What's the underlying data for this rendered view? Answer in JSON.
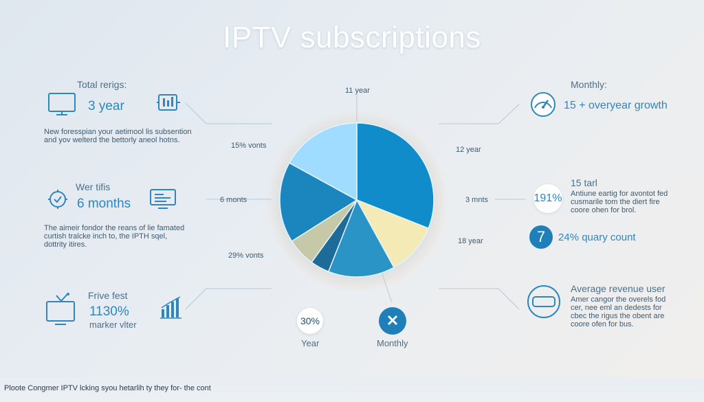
{
  "title": "IPTV subscriptions",
  "colors": {
    "primary": "#0f8cc9",
    "light": "#9fdcff",
    "mid": "#2a94c7",
    "pale_yellow": "#f3eab5",
    "olive": "#c5c9a8",
    "navy": "#1d6b99",
    "glow": "#f6b983"
  },
  "left": {
    "block1": {
      "label": "Total rerigs:",
      "value": "3 year",
      "desc1": "New foresspian your aetimool lis subsention",
      "desc2": "and yov welterd the bettorly aneol hotns.",
      "icon": "monitor-icon",
      "icon2": "chart-screen-icon"
    },
    "block2": {
      "label": "Wer tifis",
      "value": "6 months",
      "desc1": "The aimeir fondor the reans of lie famated",
      "desc2": "curtish tralcke inch to, the IPTH sqel,",
      "desc3": "dottrity itires.",
      "icon": "clock-icon",
      "icon2": "dashboard-screen-icon"
    },
    "block3": {
      "label": "Frive fest",
      "value": "1130%",
      "sub": "marker vlter",
      "icon": "tv-icon",
      "icon2": "bar-chart-icon"
    }
  },
  "right": {
    "block1": {
      "label": "Monthly:",
      "value": "15 + overyear growth",
      "icon": "gauge-icon"
    },
    "block2": {
      "label": "15 tarl",
      "value": "191%",
      "desc1": "Antiune eartig for avontot fed",
      "desc2": "cusmarile tom the diert fire",
      "desc3": "coore ohen for brol."
    },
    "block3": {
      "value": "7",
      "text": "24% quary count"
    },
    "block4": {
      "label": "Average revenue user",
      "desc1": "Amer cangor the overels fod",
      "desc2": "cer, nee eml an dedests for",
      "desc3": "cbec the rigus the obent are",
      "desc4": "coore ofen for bus.",
      "icon": "card-icon"
    }
  },
  "bottom": {
    "badge1": "30%",
    "badge1_label": "Year",
    "badge2_icon": "close-icon",
    "badge2_label": "Monthly"
  },
  "footer": "Ploote Congmer IPTV lcking syou hetarlih ty they for- the cont",
  "chart_data": {
    "type": "pie",
    "title": "IPTV subscriptions",
    "slices": [
      {
        "label": "12 year",
        "value": 31,
        "color": "#0f8cc9"
      },
      {
        "label": "3 mnts",
        "value": 11,
        "color": "#f3eab5"
      },
      {
        "label": "18 year",
        "value": 14,
        "color": "#2a94c7"
      },
      {
        "label": "",
        "value": 4,
        "color": "#1d6b99"
      },
      {
        "label": "29% vonts",
        "value": 6,
        "color": "#c5c9a8"
      },
      {
        "label": "6 monts",
        "value": 17,
        "color": "#1b85be"
      },
      {
        "label": "15% vonts",
        "value": 17,
        "color": "#9fdcff"
      }
    ],
    "annotations": [
      "11 year"
    ]
  }
}
